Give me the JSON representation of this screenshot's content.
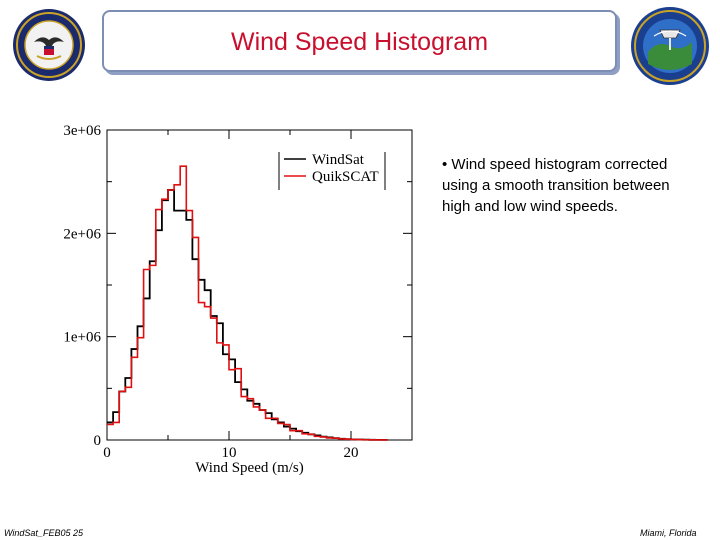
{
  "slide": {
    "title": "Wind Speed Histogram",
    "bullet": "• Wind speed histogram corrected using a smooth transition between high and low wind speeds.",
    "footer_left": "WindSat_FEB05 25",
    "footer_right": "Miami, Florida"
  },
  "seals": {
    "left": {
      "icon": "department-of-navy-seal-icon",
      "color": "#1a2a6c",
      "accent": "#c9a227"
    },
    "right": {
      "icon": "windsat-mission-patch-icon",
      "color": "#1b3f8f",
      "accent": "#c9a227"
    }
  },
  "chart_data": {
    "type": "line",
    "xlabel": "Wind Speed (m/s)",
    "ylabel": "",
    "xlim": [
      0,
      25
    ],
    "ylim": [
      0,
      3000000
    ],
    "x_ticks": [
      0,
      10,
      20
    ],
    "x_tick_labels": [
      "0",
      "10",
      "20"
    ],
    "y_ticks": [
      0,
      1000000,
      2000000,
      3000000
    ],
    "y_tick_labels": [
      "0",
      "1e+06",
      "2e+06",
      "3e+06"
    ],
    "legend_position": "top-right",
    "series": [
      {
        "name": "WindSat",
        "color": "#000000",
        "x": [
          0.0,
          0.5,
          1.0,
          1.5,
          2.0,
          2.5,
          3.0,
          3.5,
          4.0,
          4.5,
          5.0,
          5.5,
          6.0,
          6.5,
          7.0,
          7.5,
          8.0,
          8.5,
          9.0,
          9.5,
          10.0,
          10.5,
          11.0,
          11.5,
          12.0,
          12.5,
          13.0,
          13.5,
          14.0,
          14.5,
          15.0,
          15.5,
          16.0,
          16.5,
          17.0,
          17.5,
          18.0,
          18.5,
          19.0,
          19.5,
          20.0,
          20.5,
          21.0,
          21.5,
          22.0,
          22.5
        ],
        "values": [
          170000,
          270000,
          470000,
          600000,
          880000,
          1100000,
          1370000,
          1730000,
          2030000,
          2320000,
          2420000,
          2220000,
          2220000,
          2130000,
          1750000,
          1550000,
          1450000,
          1200000,
          1130000,
          830000,
          780000,
          560000,
          490000,
          380000,
          350000,
          290000,
          260000,
          200000,
          170000,
          130000,
          110000,
          85000,
          70000,
          55000,
          45000,
          32000,
          25000,
          18000,
          12000,
          8000,
          6000,
          4000,
          3000,
          2000,
          1500,
          1000
        ]
      },
      {
        "name": "QuikSCAT",
        "color": "#e01010",
        "x": [
          0.0,
          0.5,
          1.0,
          1.5,
          2.0,
          2.5,
          3.0,
          3.5,
          4.0,
          4.5,
          5.0,
          5.5,
          6.0,
          6.5,
          7.0,
          7.5,
          8.0,
          8.5,
          9.0,
          9.5,
          10.0,
          10.5,
          11.0,
          11.5,
          12.0,
          12.5,
          13.0,
          13.5,
          14.0,
          14.5,
          15.0,
          15.5,
          16.0,
          16.5,
          17.0,
          17.5,
          18.0,
          18.5,
          19.0,
          19.5,
          20.0,
          20.5,
          21.0,
          21.5,
          22.0,
          22.5
        ],
        "values": [
          150000,
          170000,
          470000,
          510000,
          800000,
          990000,
          1650000,
          1690000,
          2230000,
          2330000,
          2420000,
          2470000,
          2650000,
          2220000,
          1960000,
          1330000,
          1290000,
          1180000,
          940000,
          920000,
          680000,
          690000,
          420000,
          400000,
          320000,
          290000,
          210000,
          210000,
          160000,
          150000,
          90000,
          90000,
          60000,
          55000,
          35000,
          30000,
          20000,
          18000,
          10000,
          8000,
          5000,
          4000,
          2500,
          2000,
          1200,
          1000
        ]
      }
    ]
  }
}
